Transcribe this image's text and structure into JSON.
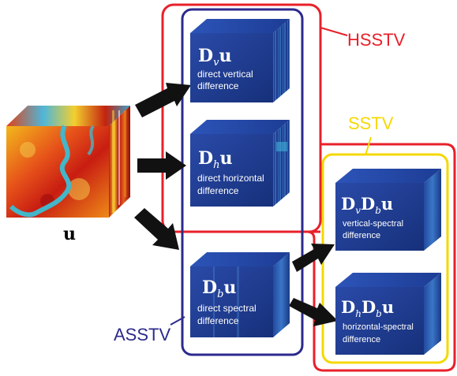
{
  "labels": {
    "hsstv": "HSSTV",
    "sstv": "SSTV",
    "asstv": "ASSTV"
  },
  "input": {
    "symbol": "u"
  },
  "cubes": {
    "dv": {
      "op": "D",
      "sub": "v",
      "vec": "u",
      "desc1": "direct vertical",
      "desc2": "difference"
    },
    "dh": {
      "op": "D",
      "sub": "h",
      "vec": "u",
      "desc1": "direct horizontal",
      "desc2": "difference"
    },
    "db": {
      "op": "D",
      "sub": "b",
      "vec": "u",
      "desc1": "direct spectral",
      "desc2": "difference"
    },
    "dvdb": {
      "op1": "D",
      "sub1": "v",
      "op2": "D",
      "sub2": "b",
      "vec": "u",
      "desc1": "vertical-spectral",
      "desc2": "difference"
    },
    "dhdb": {
      "op1": "D",
      "sub1": "h",
      "op2": "D",
      "sub2": "b",
      "vec": "u",
      "desc1": "horizontal-spectral",
      "desc2": "difference"
    }
  },
  "colors": {
    "hsstv": "#e8202a",
    "sstv": "#f5d800",
    "asstv": "#2b2a8c",
    "cube_face": "#1e3a8f",
    "arrow": "#111111"
  }
}
